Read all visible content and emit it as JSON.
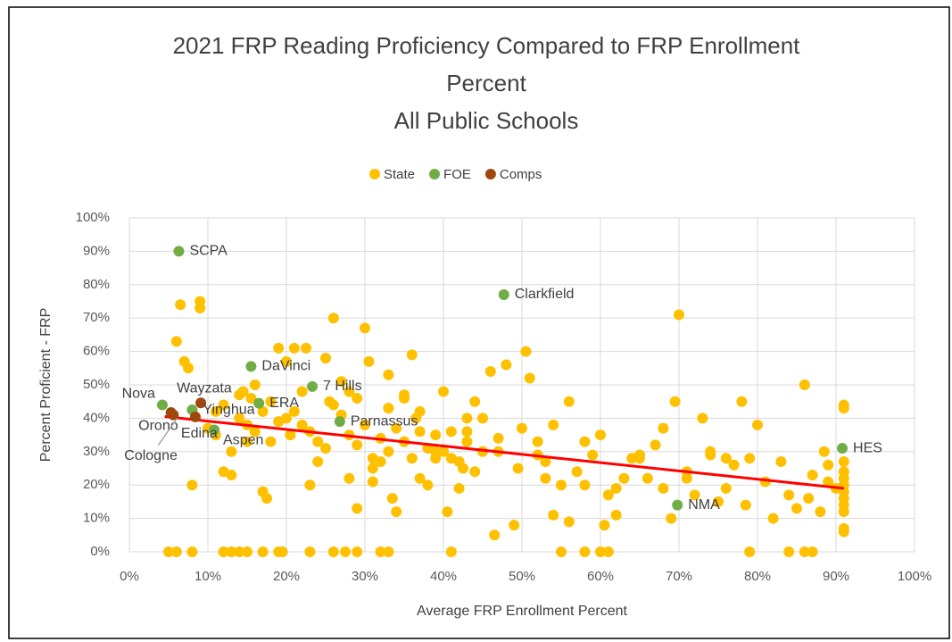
{
  "chart_data": {
    "type": "scatter",
    "title": [
      "2021 FRP Reading Proficiency Compared to FRP Enrollment",
      "Percent",
      "All Public Schools"
    ],
    "x_label": "Average FRP Enrollment Percent",
    "y_label": "Percent Proficient - FRP",
    "xlim": [
      0,
      100
    ],
    "ylim": [
      0,
      100
    ],
    "xticks": [
      {
        "value": 0,
        "label": "0%"
      },
      {
        "value": 10,
        "label": "10%"
      },
      {
        "value": 20,
        "label": "20%"
      },
      {
        "value": 30,
        "label": "30%"
      },
      {
        "value": 40,
        "label": "40%"
      },
      {
        "value": 50,
        "label": "50%"
      },
      {
        "value": 60,
        "label": "60%"
      },
      {
        "value": 70,
        "label": "70%"
      },
      {
        "value": 80,
        "label": "80%"
      },
      {
        "value": 90,
        "label": "90%"
      },
      {
        "value": 100,
        "label": "100%"
      }
    ],
    "yticks": [
      {
        "value": 0,
        "label": "0%"
      },
      {
        "value": 10,
        "label": "10%"
      },
      {
        "value": 20,
        "label": "20%"
      },
      {
        "value": 30,
        "label": "30%"
      },
      {
        "value": 40,
        "label": "40%"
      },
      {
        "value": 50,
        "label": "50%"
      },
      {
        "value": 60,
        "label": "60%"
      },
      {
        "value": 70,
        "label": "70%"
      },
      {
        "value": 80,
        "label": "80%"
      },
      {
        "value": 90,
        "label": "90%"
      },
      {
        "value": 100,
        "label": "100%"
      }
    ],
    "grid": true,
    "legend": "top",
    "series": [
      {
        "name": "State",
        "color": "#ffc000",
        "x": [
          5,
          6,
          6.5,
          7,
          7.5,
          8,
          9,
          9,
          6,
          8,
          12,
          13,
          14,
          15,
          17,
          19,
          19.5,
          23,
          26,
          27.5,
          29,
          32,
          33,
          41,
          55,
          58,
          60,
          61,
          79,
          84,
          86,
          87,
          10,
          11,
          12,
          13,
          14,
          14.5,
          15,
          16,
          17,
          17.5,
          18,
          19,
          20,
          20.5,
          21,
          22,
          22.5,
          23,
          24,
          25,
          25.5,
          26,
          27,
          28,
          29,
          30,
          30.5,
          31,
          32,
          33,
          33.5,
          34,
          35,
          36,
          36.5,
          37,
          38,
          39,
          40,
          40.5,
          41,
          42,
          42.5,
          43,
          44,
          45,
          46,
          46.5,
          47,
          48,
          49,
          49.5,
          50,
          50.5,
          51,
          52,
          53,
          54,
          55,
          56,
          57,
          58,
          59,
          60,
          60.5,
          61,
          62,
          63,
          64,
          65,
          66,
          67,
          68,
          69,
          69.5,
          70,
          71,
          72,
          73,
          74,
          75,
          76,
          77,
          78,
          78.5,
          79,
          80,
          81,
          82,
          83,
          84,
          85,
          86,
          86.5,
          87,
          88,
          88.5,
          89,
          91,
          91,
          91,
          91,
          91,
          91,
          91,
          91,
          91,
          91,
          91,
          91,
          90,
          89,
          20,
          21,
          22,
          23,
          24,
          25,
          26,
          27,
          28,
          29,
          30,
          31,
          32,
          33,
          34,
          35,
          36,
          37,
          38,
          39,
          40,
          41,
          42,
          43,
          44,
          45,
          14,
          15,
          16,
          17,
          18,
          19,
          12,
          11,
          13,
          15.5,
          28,
          29,
          31,
          33,
          35,
          37,
          39,
          43,
          47,
          52,
          53,
          54,
          56,
          58,
          62,
          65,
          68,
          71,
          74,
          76
        ],
        "y": [
          0,
          0,
          74,
          57,
          55,
          0,
          75,
          73,
          63,
          20,
          0,
          0,
          0,
          0,
          0,
          0,
          0,
          0,
          0,
          0,
          0,
          0,
          0,
          0,
          0,
          0,
          0,
          0,
          0,
          0,
          0,
          0,
          37,
          42,
          44,
          23,
          47,
          48,
          33,
          50,
          18,
          16,
          45,
          61,
          57,
          35,
          61,
          48,
          61,
          20,
          27,
          58,
          45,
          70,
          51,
          22,
          13,
          67,
          57,
          21,
          27,
          53,
          16,
          12,
          47,
          59,
          40,
          36,
          20,
          30,
          48,
          12,
          28,
          19,
          25,
          36,
          45,
          40,
          54,
          5,
          30,
          56,
          8,
          25,
          37,
          60,
          52,
          33,
          22,
          11,
          20,
          45,
          24,
          33,
          29,
          35,
          8,
          17,
          11,
          22,
          28,
          28,
          22,
          32,
          19,
          10,
          45,
          71,
          22,
          17,
          40,
          29,
          15,
          28,
          26,
          45,
          14,
          28,
          38,
          21,
          10,
          27,
          17,
          13,
          50,
          16,
          23,
          12,
          30,
          26,
          44,
          43,
          27,
          24,
          22,
          20,
          18,
          16,
          14,
          7,
          12,
          6,
          19,
          21,
          40,
          42,
          38,
          36,
          33,
          31,
          44,
          41,
          35,
          32,
          38,
          28,
          34,
          30,
          37,
          33,
          28,
          42,
          31,
          35,
          30,
          36,
          27,
          33,
          24,
          30,
          40,
          38,
          36,
          42,
          33,
          39,
          24,
          35,
          30,
          46,
          48,
          46,
          25,
          43,
          46,
          22,
          28,
          40,
          34,
          29,
          27,
          38,
          9,
          20,
          19,
          29,
          37,
          24,
          30,
          19
        ]
      },
      {
        "name": "FOE",
        "color": "#70ad47",
        "x": [
          6.3,
          47.7,
          15.5,
          23.3,
          16.5,
          26.8,
          10.8,
          90.8,
          69.8,
          4.2,
          8.0
        ],
        "y": [
          90,
          77,
          55.5,
          49.5,
          44.5,
          39,
          36.5,
          31,
          14,
          44,
          42.5
        ],
        "labels": [
          "SCPA",
          "Clarkfield",
          "DaVinci",
          "7 Hills",
          "ERA",
          "Parnassus",
          "Aspen",
          "HES",
          "NMA",
          "Nova",
          "Yinghua"
        ]
      },
      {
        "name": "Comps",
        "color": "#9e480e",
        "x": [
          9.1,
          5.3,
          8.4,
          5.6
        ],
        "y": [
          44.6,
          41.7,
          40.4,
          41.0
        ],
        "labels": [
          "Wayzata",
          "Orono",
          "Edina",
          "Cologne"
        ]
      }
    ],
    "trendline": {
      "color": "#ff0000",
      "x": [
        4.5,
        91
      ],
      "y": [
        40.5,
        19
      ]
    }
  }
}
